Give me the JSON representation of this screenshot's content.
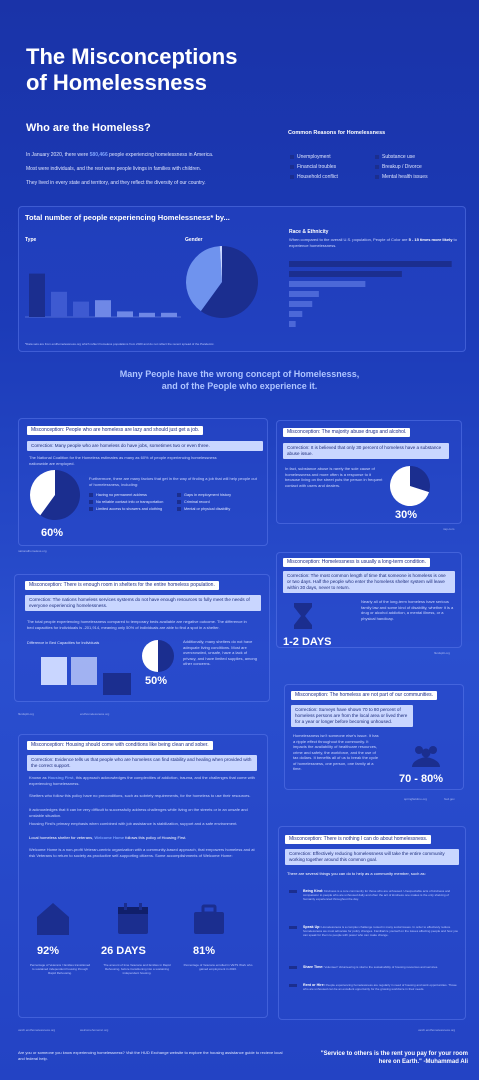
{
  "title": [
    "The Misconceptions",
    "of Homelessness"
  ],
  "who": {
    "heading": "Who are the Homeless?",
    "p1_a": "In January 2020, there were ",
    "p1_num": "580,466",
    "p1_b": " people experiencing homelessness in America.",
    "p2": "Most were individuals, and the rest were people livings in families with children.",
    "p3": "They lived in every state and territory, and they reflect the diversity of our country."
  },
  "reasons": {
    "heading": "Common Reasons for Homelessness",
    "items": [
      "Unemployment",
      "Substance use",
      "Financial troubles",
      "Breakup / Divorce",
      "Household conflict",
      "Mental health issues"
    ]
  },
  "total": {
    "heading": "Total number of people experiencing Homelessness* by...",
    "type_label": "Type",
    "gender_label": "Gender",
    "race_label": "Race & Ethnicity",
    "race_text_a": "When compared to the overall U.S. population, People of Color are ",
    "race_text_hl": "5 - 15 times more likely",
    "race_text_b": " to experience homelessness.",
    "footnote": "*Data sets are from endhomelessness.org which reflect homeless populations from 2020 and do not reflect the recent spread of the Pandemic."
  },
  "chart_data": [
    {
      "type": "bar",
      "title": "Type",
      "values": [
        0.62,
        0.36,
        0.22,
        0.24,
        0.08,
        0.06,
        0.06
      ]
    },
    {
      "type": "pie",
      "title": "Gender",
      "values": [
        0.6,
        0.39,
        0.01
      ]
    },
    {
      "type": "bar",
      "title": "Race & Ethnicity",
      "orientation": "horizontal",
      "values": [
        0.98,
        0.68,
        0.46,
        0.18,
        0.14,
        0.08,
        0.04
      ]
    }
  ],
  "banner": [
    "Many People have the wrong concept of Homelessness,",
    "and of the People who experience it."
  ],
  "m1": {
    "misc": "Misconception: People who are homeless are lazy and should just get a job.",
    "corr": "Correction: Many people who are homeless do have jobs, sometimes two or even three.",
    "t1": "The National Coalition for the Homeless estimates as many as 60% of people experiencing homelessness nationwide are employed.",
    "t2": "Furthermore, there are many factors that get in the way of finding a job that will help people out of homelessness, including:",
    "bullets": [
      "Having no permanent address",
      "Gaps in employment history",
      "No reliable contact info or transportation",
      "Criminal record",
      "Limited access to showers and clothing",
      "Mental or physical disability"
    ],
    "stat": "60%",
    "pct": 0.6,
    "src": "nationalhomeless.org"
  },
  "m2": {
    "misc": "Misconception: The majority abuse drugs and alcohol.",
    "corr": "Correction: It is believed that only 30 percent of homeless have a substance abuse issue.",
    "t1": "In fact, substance abuse is rarely the sole cause of homelessness and more often is a response to it because living on the street puts the person in frequent contact with users and dealers.",
    "stat": "30%",
    "pct": 0.3,
    "src": "nsp.com"
  },
  "m3": {
    "misc": "Misconception: Homelessness is usually a long-term condition.",
    "corr": "Correction: The most common length of time that someone is homeless is one or two days. Half the people who enter the homeless shelter system will leave within 30 days, never to return.",
    "t1": "Nearly all of the long-term homeless have serious family law and some kind of disability, whether it is a drug or alcohol addiction, a mental illness, or a physical handicap.",
    "stat": "1-2 DAYS",
    "src": "fluidsplit.org"
  },
  "m4": {
    "misc": "Misconception: There is enough room in shelters for the entire homeless population.",
    "corr": "Correction: The nations homeless services systems do not have enough resources to fully meet the needs of everyone experiencing homelessness.",
    "t1": "The total people experiencing homelessness compared to temporary beds available are negative outcome. The difference in bed capacities for individuals is -201,914, meaning only 50% of individuals are able to find a spot in a shelter.",
    "chart_title": "Difference in Bed Capacities for Individuals",
    "t2": "Additionally, many shelters do not have adequate living conditions. Most are overcrowded, unsafe, have a lack of privacy, and have limited supplies, among other concerns.",
    "stat": "50%",
    "pct": 0.5,
    "src1": "fluidsplit.org",
    "src2": "endhomelessness.org"
  },
  "m5": {
    "misc": "Misconception: The homeless are not part of our communities.",
    "corr": "Correction: Surveys have shown 70 to 80 percent of homeless persons are from the local area or lived there for a year or longer before becoming unhoused.",
    "t1": "Homelessness isn't someone else's issue. It has a ripple effect throughout the community. It impacts the availability of healthcare resources, crime and safety, the workforce, and the use of tax dollars. It benefits all of us to break the cycle of homelessness, one person, one family at a time.",
    "stat": "70 - 80%",
    "src1": "springfieldmo.org",
    "src2": "hud.gov"
  },
  "m6": {
    "misc": "Misconception: Housing should come with conditions like being clean and sober.",
    "corr": "Correction: Evidence tells us that people who are homeless can find stability and healing when provided with the correct support.",
    "t1_a": "Known as ",
    "t1_hl": "Housing First",
    "t1_b": ", this approach acknowledges the complexities of addiction, trauma, and the challenges that come with experiencing homelessness.",
    "t2": "Shelters who follow this policy have no preconditions, such as sobriety requirements, for the homeless to use their resources.",
    "t3": "It acknowledges that it can be very difficult to successfully address challenges while living on the streets or in an unsafe and unstable situation.",
    "t4": "Housing First's primary emphasis when combined with job assistance is stabilization, support and a safe environment.",
    "t5_a": "Local homeless shelter for veterans, ",
    "t5_hl": "Welcome Home",
    "t5_b": " follows this policy of Housing First.",
    "t6": "Welcome Home is a non-profit Veteran-centric organization with a community-based approach, that empowers homeless and at risk Veterans to return to society as productive self-supporting citizens. Some accomplishments of Welcome Home:",
    "stats": [
      {
        "value": "92%",
        "label": "Percentage of Veterans / families transitioned to sustained independent housing through Rapid Rehousing."
      },
      {
        "value": "26 DAYS",
        "label": "The amount of time Veterans and families in Rapid Rehousing, before transitioning into a sustaining independent housing."
      },
      {
        "value": "81%",
        "label": "Percentage of Veterans enrolled in VETS Work who gained employment in 2020."
      }
    ],
    "src1": "usich.endhomelessness.org",
    "src2": "welcomehomeinc.org"
  },
  "m7": {
    "misc": "Misconception: There is nothing I can do about homelessness.",
    "corr": "Correction: Effectively reducing homelessness will take the entire community working together around this common goal.",
    "t1": "There are several things you can do to help as a community member, such as:",
    "items": [
      {
        "head": "Being Kind:",
        "body": "Kindness is a core community for those who are unhoused. Unexpectable acts of kindness and compassion to people who are unhoused daily and often the act of kindness one makes is the only shelving of humanity experienced throughout the day."
      },
      {
        "head": "Speak Up:",
        "body": "Homelessness is a complex challenge rooted in many social issues. In order to effectively reduce homelessness we must advocate for policy changes. Familiarize yourself on the issues affecting people and how you can speak for them to people with power who can make change."
      },
      {
        "head": "Share Time:",
        "body": "Volunteer! Volunteering is vital to the sustainability of housing resources and services."
      },
      {
        "head": "Rent or Hire:",
        "body": "People experiencing homelessness are regularly in need of housing and work opportunities. Those who are unhoused can be an excellent opportunity for the growing workforce in their needs."
      }
    ],
    "src": "usich.endhomelessness.org"
  },
  "footer": {
    "left": "Are you or someone you know experiencing homelessness? Visit the HUD Exchange website to explore the housing assistance guide to recieve local and federal help.",
    "quote": "\"Service to others is the rent you pay for your room here on Earth.\" -Muhammad Ali"
  }
}
